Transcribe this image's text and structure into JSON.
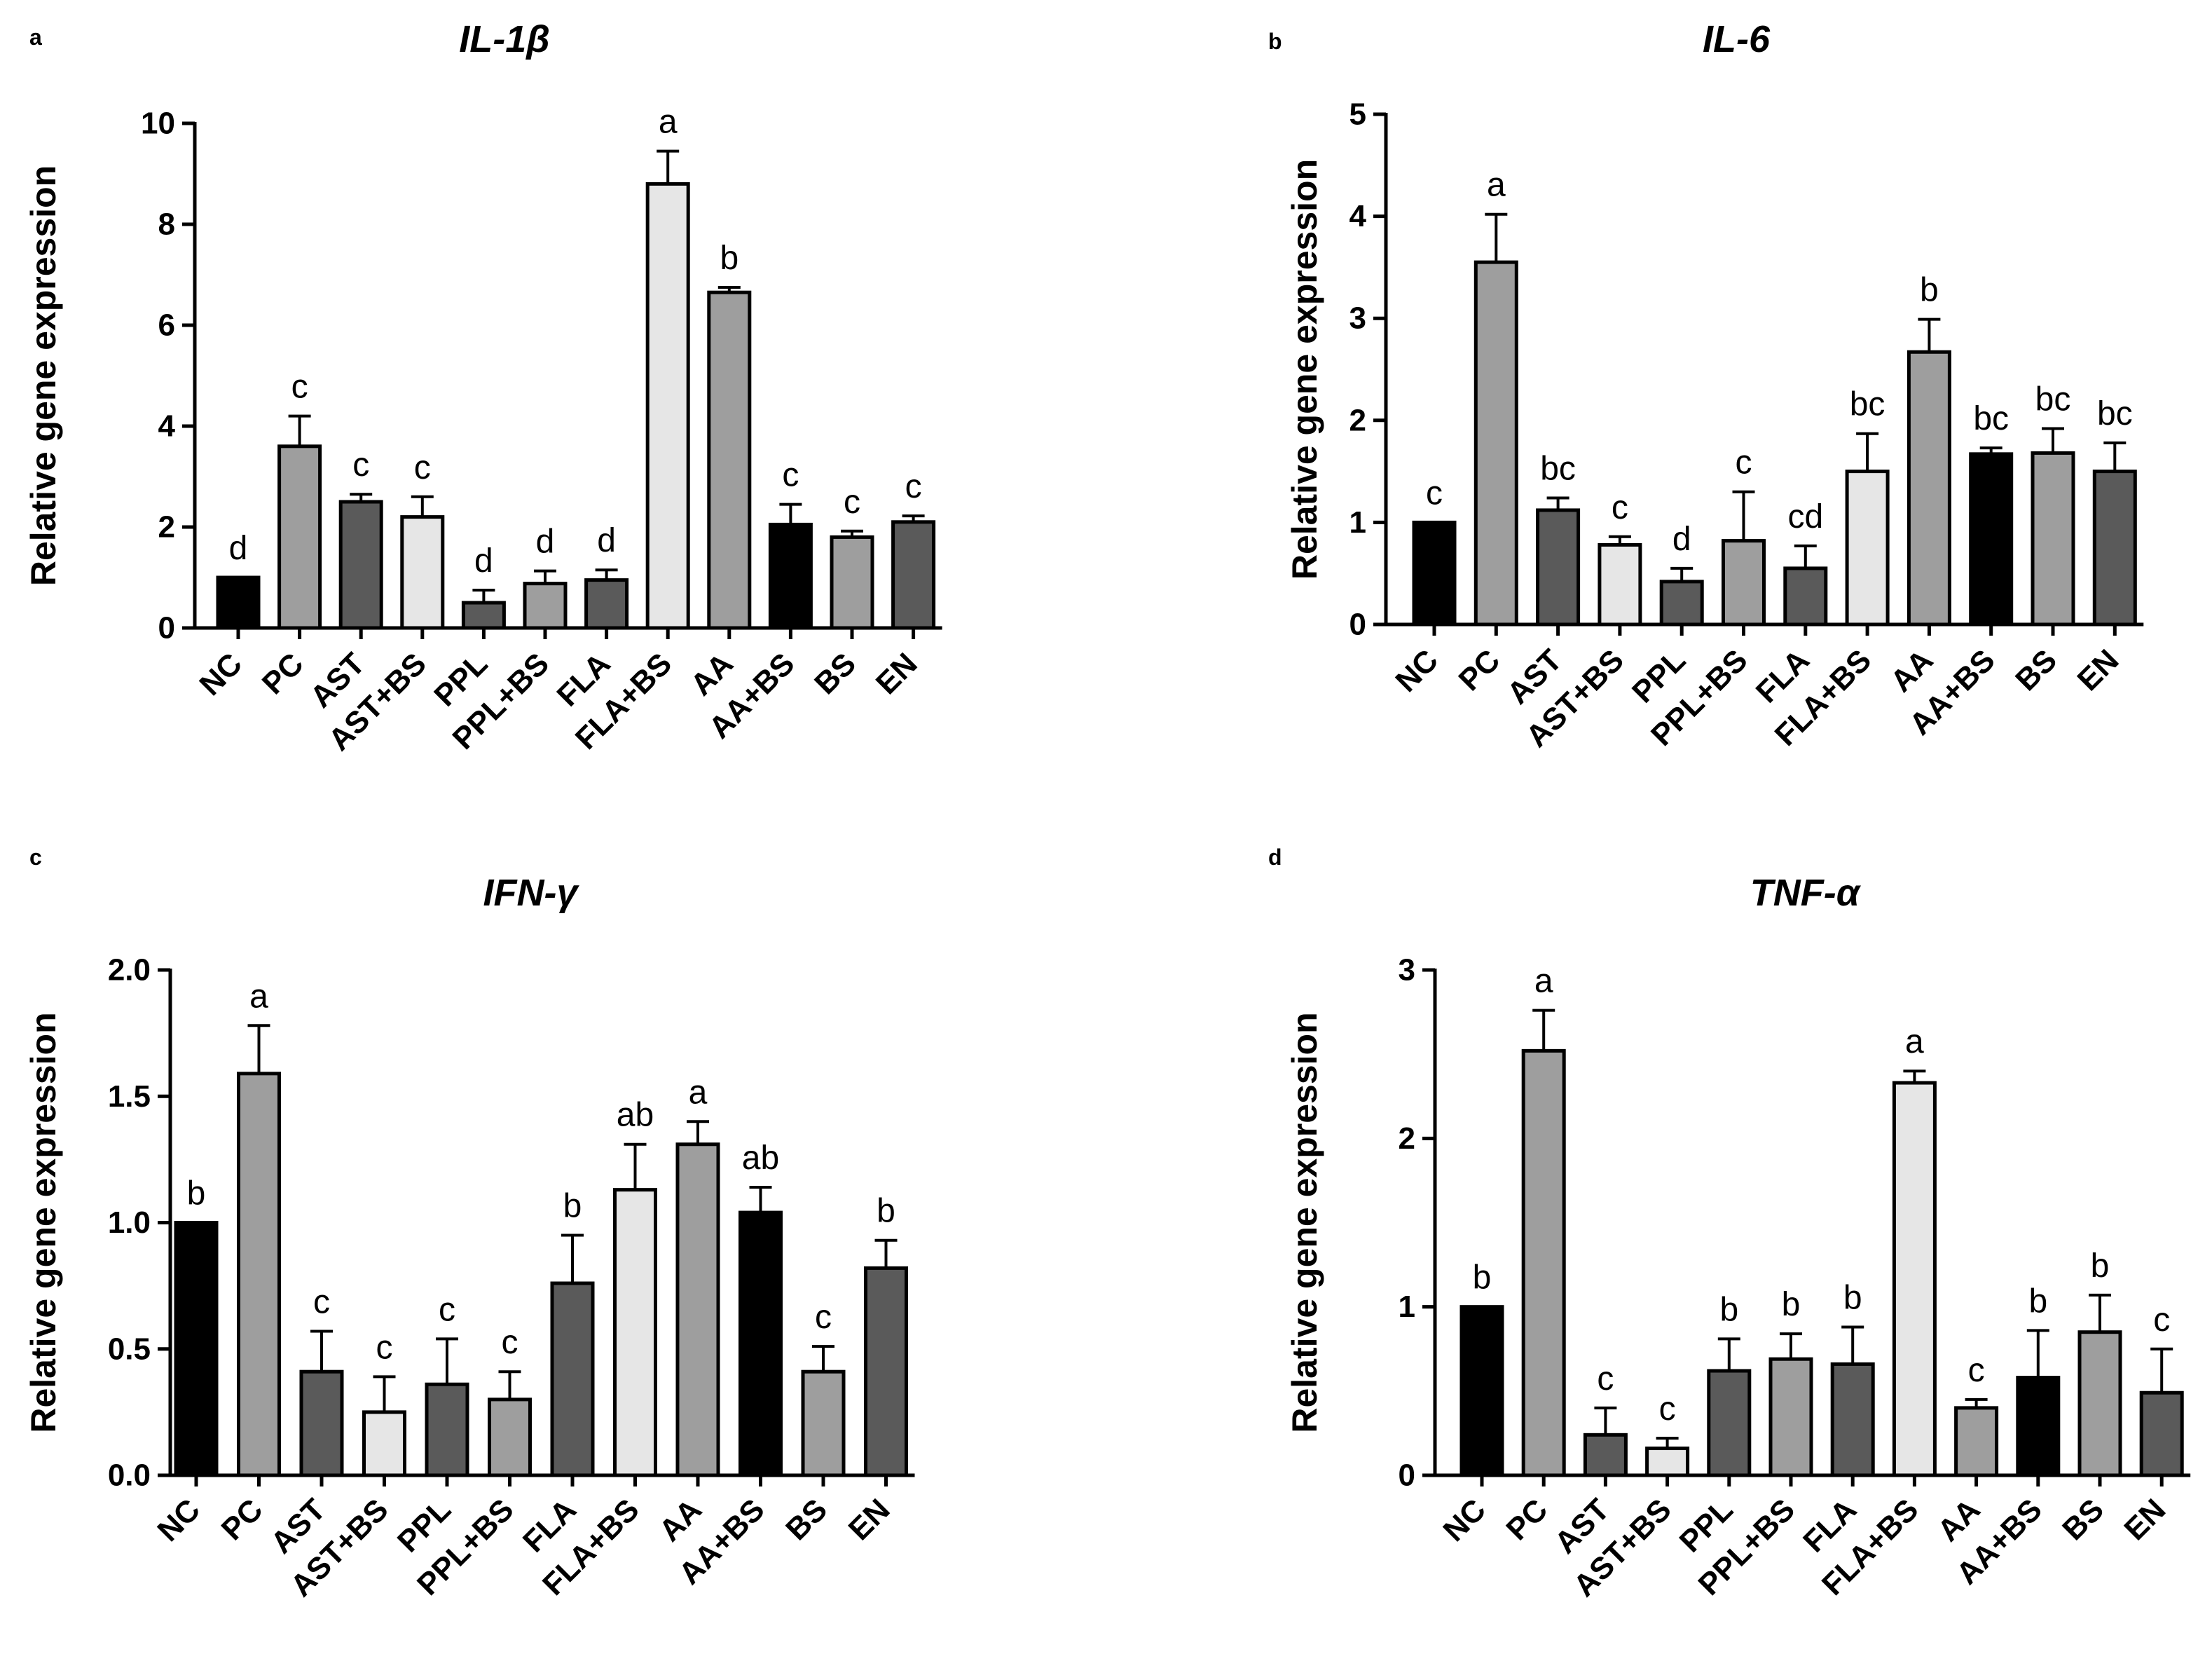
{
  "chart_data": [
    {
      "panel": "a",
      "type": "bar",
      "title": "IL-1β",
      "ylabel": "Relative gene expression",
      "xlabel": "",
      "ylim": [
        0,
        10
      ],
      "yticks": [
        0,
        2,
        4,
        6,
        8,
        10
      ],
      "ytick_labels": [
        "0",
        "2",
        "4",
        "6",
        "8",
        "10"
      ],
      "categories": [
        "NC",
        "PC",
        "AST",
        "AST+BS",
        "PPL",
        "PPL+BS",
        "FLA",
        "FLA+BS",
        "AA",
        "AA+BS",
        "BS",
        "EN"
      ],
      "values": [
        1.0,
        3.6,
        2.5,
        2.2,
        0.5,
        0.88,
        0.95,
        8.8,
        6.65,
        2.05,
        1.8,
        2.1
      ],
      "errors": [
        0,
        0.6,
        0.15,
        0.4,
        0.25,
        0.25,
        0.2,
        0.65,
        0.1,
        0.4,
        0.12,
        0.12
      ],
      "significance": [
        "d",
        "c",
        "c",
        "c",
        "d",
        "d",
        "d",
        "a",
        "b",
        "c",
        "c",
        "c"
      ]
    },
    {
      "panel": "b",
      "type": "bar",
      "title": "IL-6",
      "ylabel": "Relative gene expression",
      "xlabel": "",
      "ylim": [
        0,
        5
      ],
      "yticks": [
        0,
        1,
        2,
        3,
        4,
        5
      ],
      "ytick_labels": [
        "0",
        "1",
        "2",
        "3",
        "4",
        "5"
      ],
      "categories": [
        "NC",
        "PC",
        "AST",
        "AST+BS",
        "PPL",
        "PPL+BS",
        "FLA",
        "FLA+BS",
        "AA",
        "AA+BS",
        "BS",
        "EN"
      ],
      "values": [
        1.0,
        3.55,
        1.12,
        0.78,
        0.42,
        0.82,
        0.55,
        1.5,
        2.67,
        1.67,
        1.68,
        1.5
      ],
      "errors": [
        0,
        0.47,
        0.12,
        0.08,
        0.13,
        0.48,
        0.22,
        0.37,
        0.32,
        0.06,
        0.24,
        0.28
      ],
      "significance": [
        "c",
        "a",
        "bc",
        "c",
        "d",
        "c",
        "cd",
        "bc",
        "b",
        "bc",
        "bc",
        "bc"
      ]
    },
    {
      "panel": "c",
      "type": "bar",
      "title": "IFN-γ",
      "ylabel": "Relative gene expression",
      "xlabel": "",
      "ylim": [
        0,
        2.0
      ],
      "yticks": [
        0,
        0.5,
        1.0,
        1.5,
        2.0
      ],
      "ytick_labels": [
        "0.0",
        "0.5",
        "1.0",
        "1.5",
        "2.0"
      ],
      "categories": [
        "NC",
        "PC",
        "AST",
        "AST+BS",
        "PPL",
        "PPL+BS",
        "FLA",
        "FLA+BS",
        "AA",
        "AA+BS",
        "BS",
        "EN"
      ],
      "values": [
        1.0,
        1.59,
        0.41,
        0.25,
        0.36,
        0.3,
        0.76,
        1.13,
        1.31,
        1.04,
        0.41,
        0.82
      ],
      "errors": [
        0,
        0.19,
        0.16,
        0.14,
        0.18,
        0.11,
        0.19,
        0.18,
        0.09,
        0.1,
        0.1,
        0.11
      ],
      "significance": [
        "b",
        "a",
        "c",
        "c",
        "c",
        "c",
        "b",
        "ab",
        "a",
        "ab",
        "c",
        "b"
      ]
    },
    {
      "panel": "d",
      "type": "bar",
      "title": "TNF-α",
      "ylabel": "Relative gene expression",
      "xlabel": "",
      "ylim": [
        0,
        3
      ],
      "yticks": [
        0,
        1,
        2,
        3
      ],
      "ytick_labels": [
        "0",
        "1",
        "2",
        "3"
      ],
      "categories": [
        "NC",
        "PC",
        "AST",
        "AST+BS",
        "PPL",
        "PPL+BS",
        "FLA",
        "FLA+BS",
        "AA",
        "AA+BS",
        "BS",
        "EN"
      ],
      "values": [
        1.0,
        2.52,
        0.24,
        0.16,
        0.62,
        0.69,
        0.66,
        2.33,
        0.4,
        0.58,
        0.85,
        0.49
      ],
      "errors": [
        0,
        0.24,
        0.16,
        0.06,
        0.19,
        0.15,
        0.22,
        0.07,
        0.05,
        0.28,
        0.22,
        0.26
      ],
      "significance": [
        "b",
        "a",
        "c",
        "c",
        "b",
        "b",
        "b",
        "a",
        "c",
        "b",
        "b",
        "c"
      ]
    }
  ],
  "bar_colors": [
    "#000000",
    "#9e9e9e",
    "#5a5a5a",
    "#e6e6e6",
    "#5a5a5a",
    "#9e9e9e",
    "#5a5a5a",
    "#e6e6e6",
    "#9e9e9e",
    "#000000",
    "#9e9e9e",
    "#5a5a5a"
  ],
  "outline_color": "#000000"
}
